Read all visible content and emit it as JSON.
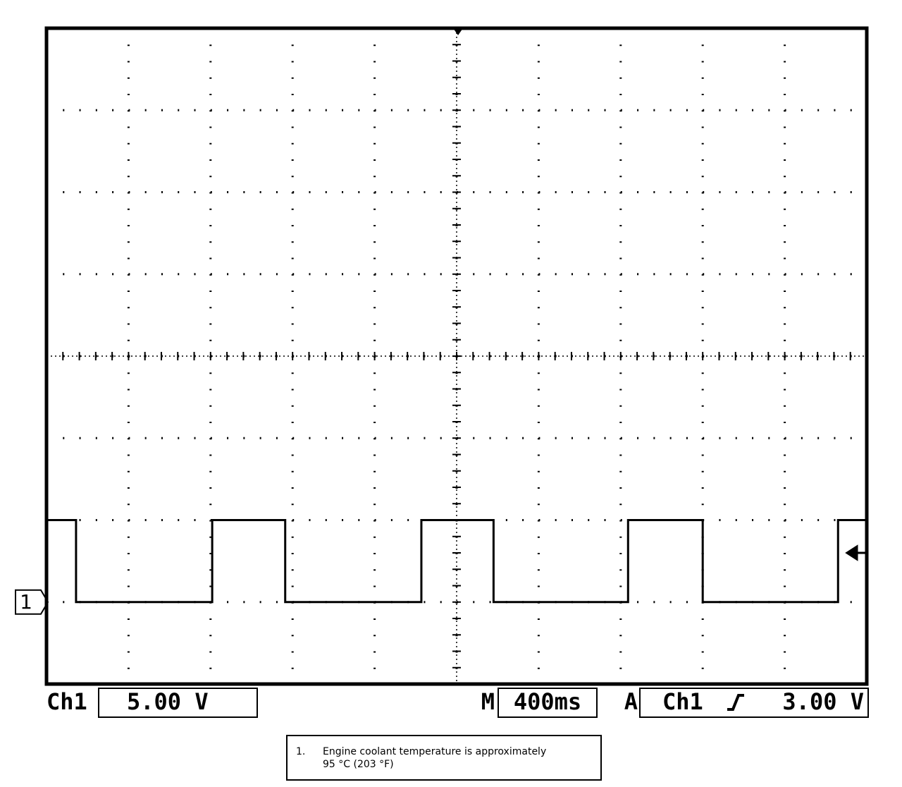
{
  "chart_data": {
    "type": "line",
    "xlim": [
      0,
      4000
    ],
    "ylim": [
      -5,
      35
    ],
    "xticks": [
      0,
      400,
      800,
      1200,
      1600,
      2000,
      2400,
      2800,
      3200,
      3600,
      4000
    ],
    "yticks": [
      -5,
      0,
      5,
      10,
      15,
      20,
      25,
      30,
      35
    ],
    "grid": true,
    "x": [
      0,
      144,
      144,
      808,
      808,
      1164,
      1164,
      1828,
      1828,
      2180,
      2180,
      2836,
      2836,
      3200,
      3200,
      3860,
      3860,
      4000
    ],
    "series": [
      {
        "name": "1",
        "color": "#000000",
        "values": [
          5,
          5,
          0,
          0,
          5,
          5,
          0,
          0,
          5,
          5,
          0,
          0,
          5,
          5,
          0,
          0,
          5,
          5
        ]
      }
    ],
    "trigger_level": 3,
    "readout": {
      "channel": "Ch1",
      "volts_per_div": "5.00 V",
      "main": "M",
      "time_per_div": "400ms",
      "acquire": "A",
      "trigger_channel": "Ch1",
      "trigger_label": "3.00 V"
    },
    "note": {
      "number": "1.",
      "lines": [
        "Engine coolant temperature is approximately",
        "95 °C (203 °F)"
      ]
    }
  }
}
